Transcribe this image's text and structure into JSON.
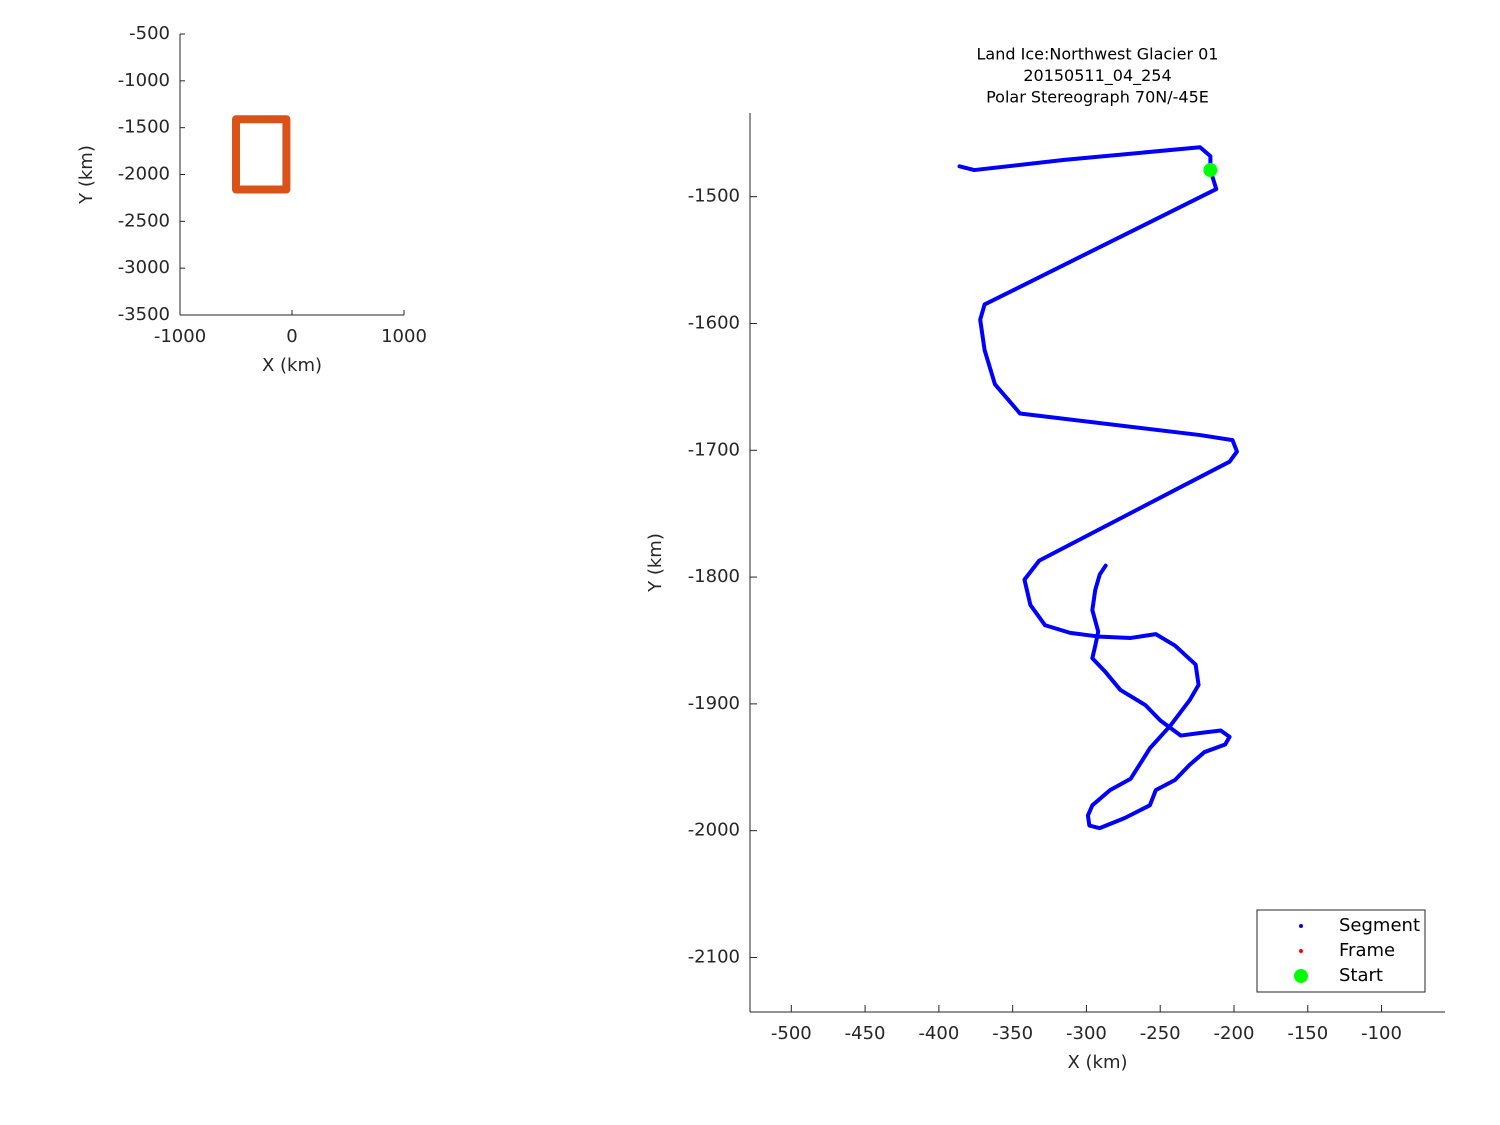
{
  "chart_data": [
    {
      "type": "line",
      "xlabel": "X (km)",
      "ylabel": "Y (km)",
      "xlim": [
        -1000,
        1000
      ],
      "ylim": [
        -3500,
        -500
      ],
      "xticks": [
        -1000,
        0,
        1000
      ],
      "yticks": [
        -500,
        -1000,
        -1500,
        -2000,
        -2500,
        -3000,
        -3500
      ],
      "series": [
        {
          "color": "#d95319",
          "x": [
            -500,
            -50,
            -50,
            -500,
            -500
          ],
          "y": [
            -1410,
            -1410,
            -2160,
            -2160,
            -1410
          ]
        }
      ]
    },
    {
      "type": "line",
      "title": [
        "Land Ice:Northwest Glacier 01",
        "20150511_04_254",
        "Polar Stereograph 70N/-45E"
      ],
      "xlabel": "X (km)",
      "ylabel": "Y (km)",
      "xlim": [
        -528,
        -57
      ],
      "ylim": [
        -2143,
        -1434
      ],
      "xticks": [
        -500,
        -450,
        -400,
        -350,
        -300,
        -250,
        -200,
        -150,
        -100
      ],
      "yticks": [
        -1500,
        -1600,
        -1700,
        -1800,
        -1900,
        -2000,
        -2100
      ],
      "legend": "lower right",
      "series": [
        {
          "name": "Segment",
          "color": "#0000ff",
          "x": [
            -386,
            -376,
            -315,
            -223,
            -216,
            -216,
            -212,
            -369,
            -372,
            -369,
            -362,
            -345,
            -223,
            -201,
            -198,
            -203,
            -332,
            -342,
            -338,
            -328,
            -311,
            -291,
            -270,
            -253,
            -240,
            -226,
            -224,
            -230,
            -243,
            -257,
            -264,
            -270,
            -284,
            -296,
            -299,
            -298,
            -291,
            -274,
            -257,
            -253,
            -240,
            -230,
            -220,
            -206,
            -203,
            -209,
            -223,
            -236,
            -250,
            -260,
            -277,
            -287,
            -296,
            -294,
            -292,
            -296,
            -294,
            -291,
            -287
          ],
          "y": [
            -1476,
            -1479,
            -1471,
            -1461,
            -1468,
            -1479,
            -1494,
            -1585,
            -1597,
            -1621,
            -1648,
            -1671,
            -1688,
            -1692,
            -1701,
            -1709,
            -1787,
            -1802,
            -1822,
            -1838,
            -1844,
            -1847,
            -1848,
            -1845,
            -1854,
            -1869,
            -1885,
            -1897,
            -1917,
            -1935,
            -1948,
            -1959,
            -1968,
            -1980,
            -1988,
            -1996,
            -1998,
            -1990,
            -1980,
            -1968,
            -1960,
            -1948,
            -1938,
            -1932,
            -1926,
            -1921,
            -1923,
            -1925,
            -1913,
            -1901,
            -1889,
            -1875,
            -1864,
            -1854,
            -1843,
            -1826,
            -1810,
            -1798,
            -1791
          ]
        },
        {
          "name": "Frame",
          "color": "#ff0000",
          "x": [],
          "y": []
        },
        {
          "name": "Start",
          "color": "#00ff00",
          "x": [
            -216
          ],
          "y": [
            -1479
          ]
        }
      ]
    }
  ]
}
